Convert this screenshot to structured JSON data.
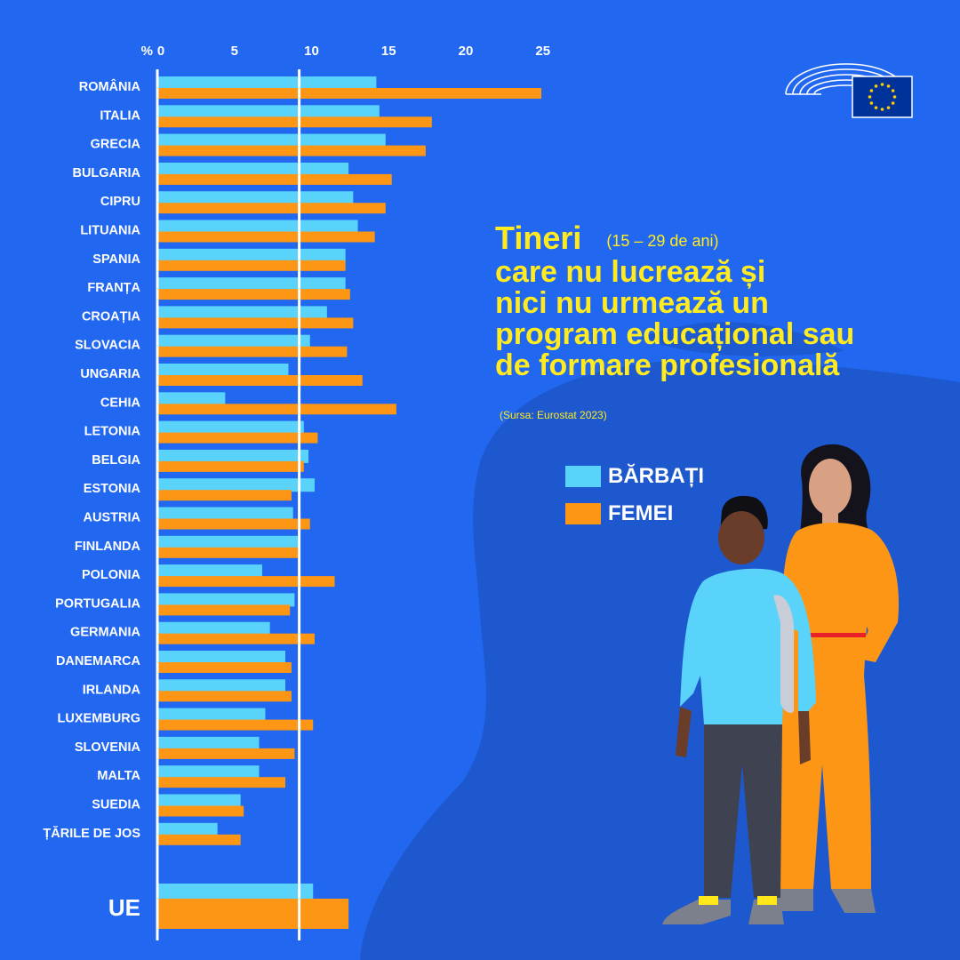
{
  "title": {
    "word": "Tineri",
    "age": "(15 – 29 de ani)",
    "lines": [
      "care nu lucrează și",
      "nici nu urmează un",
      "program educațional sau",
      "de formare profesională"
    ]
  },
  "source": "(Sursa: Eurostat 2023)",
  "legend": {
    "men": "BĂRBAȚI",
    "women": "FEMEI"
  },
  "colors": {
    "background": "#2167f0",
    "men": "#5ad3fb",
    "women": "#fd9515",
    "title": "#ffeb1f"
  },
  "logo": {
    "icon": "european-parliament-logo"
  },
  "illustration": {
    "icon": "two-young-people-illustration"
  },
  "chart_data": {
    "type": "bar",
    "orientation": "horizontal",
    "axis_unit_label": "%",
    "xlim": [
      0,
      25
    ],
    "xticks": [
      0,
      5,
      10,
      15,
      20,
      25
    ],
    "reference_line": 9.2,
    "categories": [
      "ROMÂNIA",
      "ITALIA",
      "GRECIA",
      "BULGARIA",
      "CIPRU",
      "LITUANIA",
      "SPANIA",
      "FRANȚA",
      "CROAȚIA",
      "SLOVACIA",
      "UNGARIA",
      "CEHIA",
      "LETONIA",
      "BELGIA",
      "ESTONIA",
      "AUSTRIA",
      "FINLANDA",
      "POLONIA",
      "PORTUGALIA",
      "GERMANIA",
      "DANEMARCA",
      "IRLANDA",
      "LUXEMBURG",
      "SLOVENIA",
      "MALTA",
      "SUEDIA",
      "ȚĂRILE DE JOS"
    ],
    "series": [
      {
        "name": "BĂRBAȚI",
        "values": [
          14.2,
          14.4,
          14.8,
          12.4,
          12.7,
          13.0,
          12.2,
          12.2,
          11.0,
          9.9,
          8.5,
          4.4,
          9.5,
          9.8,
          10.2,
          8.8,
          9.2,
          6.8,
          8.9,
          7.3,
          8.3,
          8.3,
          7.0,
          6.6,
          6.6,
          5.4,
          3.9
        ]
      },
      {
        "name": "FEMEI",
        "values": [
          24.9,
          17.8,
          17.4,
          15.2,
          14.8,
          14.1,
          12.2,
          12.5,
          12.7,
          12.3,
          13.3,
          15.5,
          10.4,
          9.5,
          8.7,
          9.9,
          9.2,
          11.5,
          8.6,
          10.2,
          8.7,
          8.7,
          10.1,
          8.9,
          8.3,
          5.6,
          5.4
        ]
      }
    ],
    "summary": {
      "label": "UE",
      "men": 10.1,
      "women": 12.4
    }
  }
}
